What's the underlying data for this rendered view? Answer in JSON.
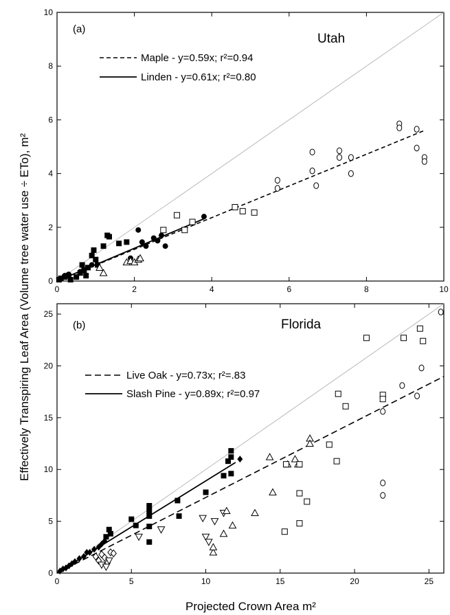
{
  "figure": {
    "ylabel": "Effectively Transpiring Leaf Area (Volume tree water use ÷ ETo), m²",
    "xlabel": "Projected Crown Area m²"
  },
  "chart_data": [
    {
      "type": "scatter",
      "panel": "(a)",
      "title": "Utah",
      "xlim": [
        0,
        10
      ],
      "ylim": [
        0,
        10
      ],
      "xticks": [
        0,
        2,
        4,
        6,
        8,
        10
      ],
      "yticks": [
        0,
        2,
        4,
        6,
        8,
        10
      ],
      "one_to_one_line": true,
      "legend_position": "upper-left",
      "fits": [
        {
          "label": "Maple - y=0.59x; r²=0.94",
          "slope": 0.59,
          "style": "dashed",
          "x_range": [
            0,
            9.5
          ]
        },
        {
          "label": "Linden - y=0.61x; r²=0.80",
          "slope": 0.61,
          "style": "solid",
          "x_range": [
            0,
            3.8
          ]
        }
      ],
      "series": [
        {
          "marker": "filled-square",
          "points": [
            [
              0.05,
              0.05
            ],
            [
              0.1,
              0.1
            ],
            [
              0.2,
              0.15
            ],
            [
              0.3,
              0.2
            ],
            [
              0.35,
              0.05
            ],
            [
              0.5,
              0.15
            ],
            [
              0.6,
              0.3
            ],
            [
              0.65,
              0.6
            ],
            [
              0.7,
              0.4
            ],
            [
              0.75,
              0.2
            ],
            [
              0.8,
              0.5
            ],
            [
              0.9,
              0.95
            ],
            [
              0.95,
              1.15
            ],
            [
              1.0,
              0.8
            ],
            [
              1.05,
              0.6
            ],
            [
              1.2,
              1.3
            ],
            [
              1.3,
              1.7
            ],
            [
              1.35,
              1.65
            ],
            [
              1.6,
              1.4
            ],
            [
              1.8,
              1.45
            ]
          ]
        },
        {
          "marker": "filled-circle",
          "points": [
            [
              0.1,
              0.1
            ],
            [
              0.2,
              0.2
            ],
            [
              0.3,
              0.25
            ],
            [
              0.6,
              0.35
            ],
            [
              0.9,
              0.6
            ],
            [
              1.9,
              0.85
            ],
            [
              2.1,
              1.9
            ],
            [
              2.2,
              1.45
            ],
            [
              2.3,
              1.3
            ],
            [
              2.5,
              1.6
            ],
            [
              2.6,
              1.5
            ],
            [
              2.7,
              1.7
            ],
            [
              2.8,
              1.3
            ],
            [
              3.8,
              2.4
            ]
          ]
        },
        {
          "marker": "open-triangle",
          "points": [
            [
              1.1,
              0.5
            ],
            [
              1.2,
              0.3
            ],
            [
              1.8,
              0.7
            ],
            [
              1.9,
              0.75
            ],
            [
              2.0,
              0.7
            ],
            [
              2.1,
              0.8
            ],
            [
              2.15,
              0.85
            ]
          ]
        },
        {
          "marker": "open-square",
          "points": [
            [
              2.75,
              1.9
            ],
            [
              3.1,
              2.45
            ],
            [
              3.3,
              1.9
            ],
            [
              3.5,
              2.2
            ],
            [
              4.6,
              2.75
            ],
            [
              4.8,
              2.6
            ],
            [
              5.1,
              2.55
            ]
          ]
        },
        {
          "marker": "open-circle",
          "points": [
            [
              5.7,
              3.75
            ],
            [
              5.7,
              3.45
            ],
            [
              6.6,
              4.8
            ],
            [
              6.6,
              4.1
            ],
            [
              6.7,
              3.55
            ],
            [
              7.3,
              4.85
            ],
            [
              7.3,
              4.6
            ],
            [
              7.6,
              4.6
            ],
            [
              7.6,
              4.0
            ],
            [
              8.85,
              5.85
            ],
            [
              8.85,
              5.7
            ],
            [
              9.3,
              5.65
            ],
            [
              9.3,
              4.95
            ],
            [
              9.5,
              4.6
            ],
            [
              9.5,
              4.45
            ]
          ]
        }
      ]
    },
    {
      "type": "scatter",
      "panel": "(b)",
      "title": "Florida",
      "xlim": [
        0,
        26
      ],
      "ylim": [
        0,
        26
      ],
      "xticks": [
        0,
        5,
        10,
        15,
        20,
        25
      ],
      "yticks": [
        0,
        5,
        10,
        15,
        20,
        25
      ],
      "one_to_one_line": true,
      "legend_position": "upper-left",
      "fits": [
        {
          "label": "Live Oak - y=0.73x; r²=.83",
          "slope": 0.73,
          "style": "dashed",
          "x_range": [
            0,
            26
          ]
        },
        {
          "label": "Slash Pine - y=0.89x; r²=0.97",
          "slope": 0.89,
          "style": "solid",
          "x_range": [
            0,
            12
          ]
        }
      ],
      "series": [
        {
          "marker": "filled-diamond",
          "points": [
            [
              0.2,
              0.2
            ],
            [
              0.4,
              0.4
            ],
            [
              0.6,
              0.5
            ],
            [
              0.8,
              0.7
            ],
            [
              1.0,
              0.9
            ],
            [
              1.2,
              1.1
            ],
            [
              1.5,
              1.4
            ],
            [
              1.8,
              1.6
            ],
            [
              2.0,
              2.0
            ],
            [
              2.2,
              2.0
            ],
            [
              2.5,
              2.3
            ],
            [
              2.8,
              2.5
            ],
            [
              3.0,
              2.8
            ],
            [
              3.2,
              3.1
            ],
            [
              12.3,
              11.0
            ]
          ]
        },
        {
          "marker": "filled-square",
          "points": [
            [
              3.3,
              3.5
            ],
            [
              3.5,
              4.2
            ],
            [
              3.6,
              3.8
            ],
            [
              5.0,
              5.2
            ],
            [
              5.3,
              4.6
            ],
            [
              6.2,
              6.5
            ],
            [
              6.2,
              6.0
            ],
            [
              6.2,
              5.5
            ],
            [
              6.2,
              4.5
            ],
            [
              6.2,
              3.0
            ],
            [
              8.1,
              7.0
            ],
            [
              8.2,
              5.5
            ],
            [
              10.0,
              7.8
            ],
            [
              11.2,
              9.4
            ],
            [
              11.5,
              10.8
            ],
            [
              11.7,
              11.8
            ],
            [
              11.7,
              11.2
            ],
            [
              11.7,
              9.6
            ]
          ]
        },
        {
          "marker": "open-diamond",
          "points": [
            [
              2.6,
              1.6
            ],
            [
              2.8,
              1.2
            ],
            [
              3.0,
              1.8
            ],
            [
              3.2,
              1.5
            ],
            [
              3.4,
              1.0
            ],
            [
              3.6,
              2.0
            ],
            [
              3.8,
              1.9
            ]
          ]
        },
        {
          "marker": "open-triangle-down",
          "points": [
            [
              3.0,
              0.8
            ],
            [
              3.3,
              0.6
            ],
            [
              3.5,
              1.2
            ],
            [
              5.5,
              3.5
            ],
            [
              7.0,
              4.2
            ],
            [
              9.8,
              5.3
            ],
            [
              10.0,
              3.5
            ],
            [
              10.2,
              3.0
            ],
            [
              10.6,
              5.0
            ],
            [
              11.2,
              5.8
            ]
          ]
        },
        {
          "marker": "open-triangle",
          "points": [
            [
              10.5,
              2.0
            ],
            [
              10.5,
              2.5
            ],
            [
              11.2,
              3.8
            ],
            [
              11.4,
              6.0
            ],
            [
              11.8,
              4.6
            ],
            [
              13.3,
              5.8
            ],
            [
              14.3,
              11.2
            ],
            [
              14.5,
              7.8
            ],
            [
              15.5,
              10.5
            ],
            [
              16.0,
              11.0
            ],
            [
              16.2,
              10.5
            ],
            [
              17.0,
              13.0
            ],
            [
              17.0,
              12.5
            ]
          ]
        },
        {
          "marker": "open-square",
          "points": [
            [
              15.3,
              4.0
            ],
            [
              15.4,
              10.5
            ],
            [
              16.3,
              10.5
            ],
            [
              16.3,
              7.7
            ],
            [
              16.3,
              4.8
            ],
            [
              16.8,
              6.9
            ],
            [
              18.3,
              12.4
            ],
            [
              18.8,
              10.8
            ],
            [
              18.9,
              17.3
            ],
            [
              19.4,
              16.1
            ],
            [
              20.8,
              22.7
            ],
            [
              21.9,
              17.2
            ],
            [
              21.9,
              16.8
            ],
            [
              23.3,
              22.7
            ],
            [
              24.4,
              23.6
            ],
            [
              24.6,
              22.4
            ]
          ]
        },
        {
          "marker": "open-circle",
          "points": [
            [
              21.9,
              15.6
            ],
            [
              21.9,
              8.7
            ],
            [
              21.9,
              7.5
            ],
            [
              23.2,
              18.1
            ],
            [
              24.2,
              17.1
            ],
            [
              24.5,
              19.8
            ],
            [
              25.8,
              25.2
            ]
          ]
        }
      ]
    }
  ]
}
